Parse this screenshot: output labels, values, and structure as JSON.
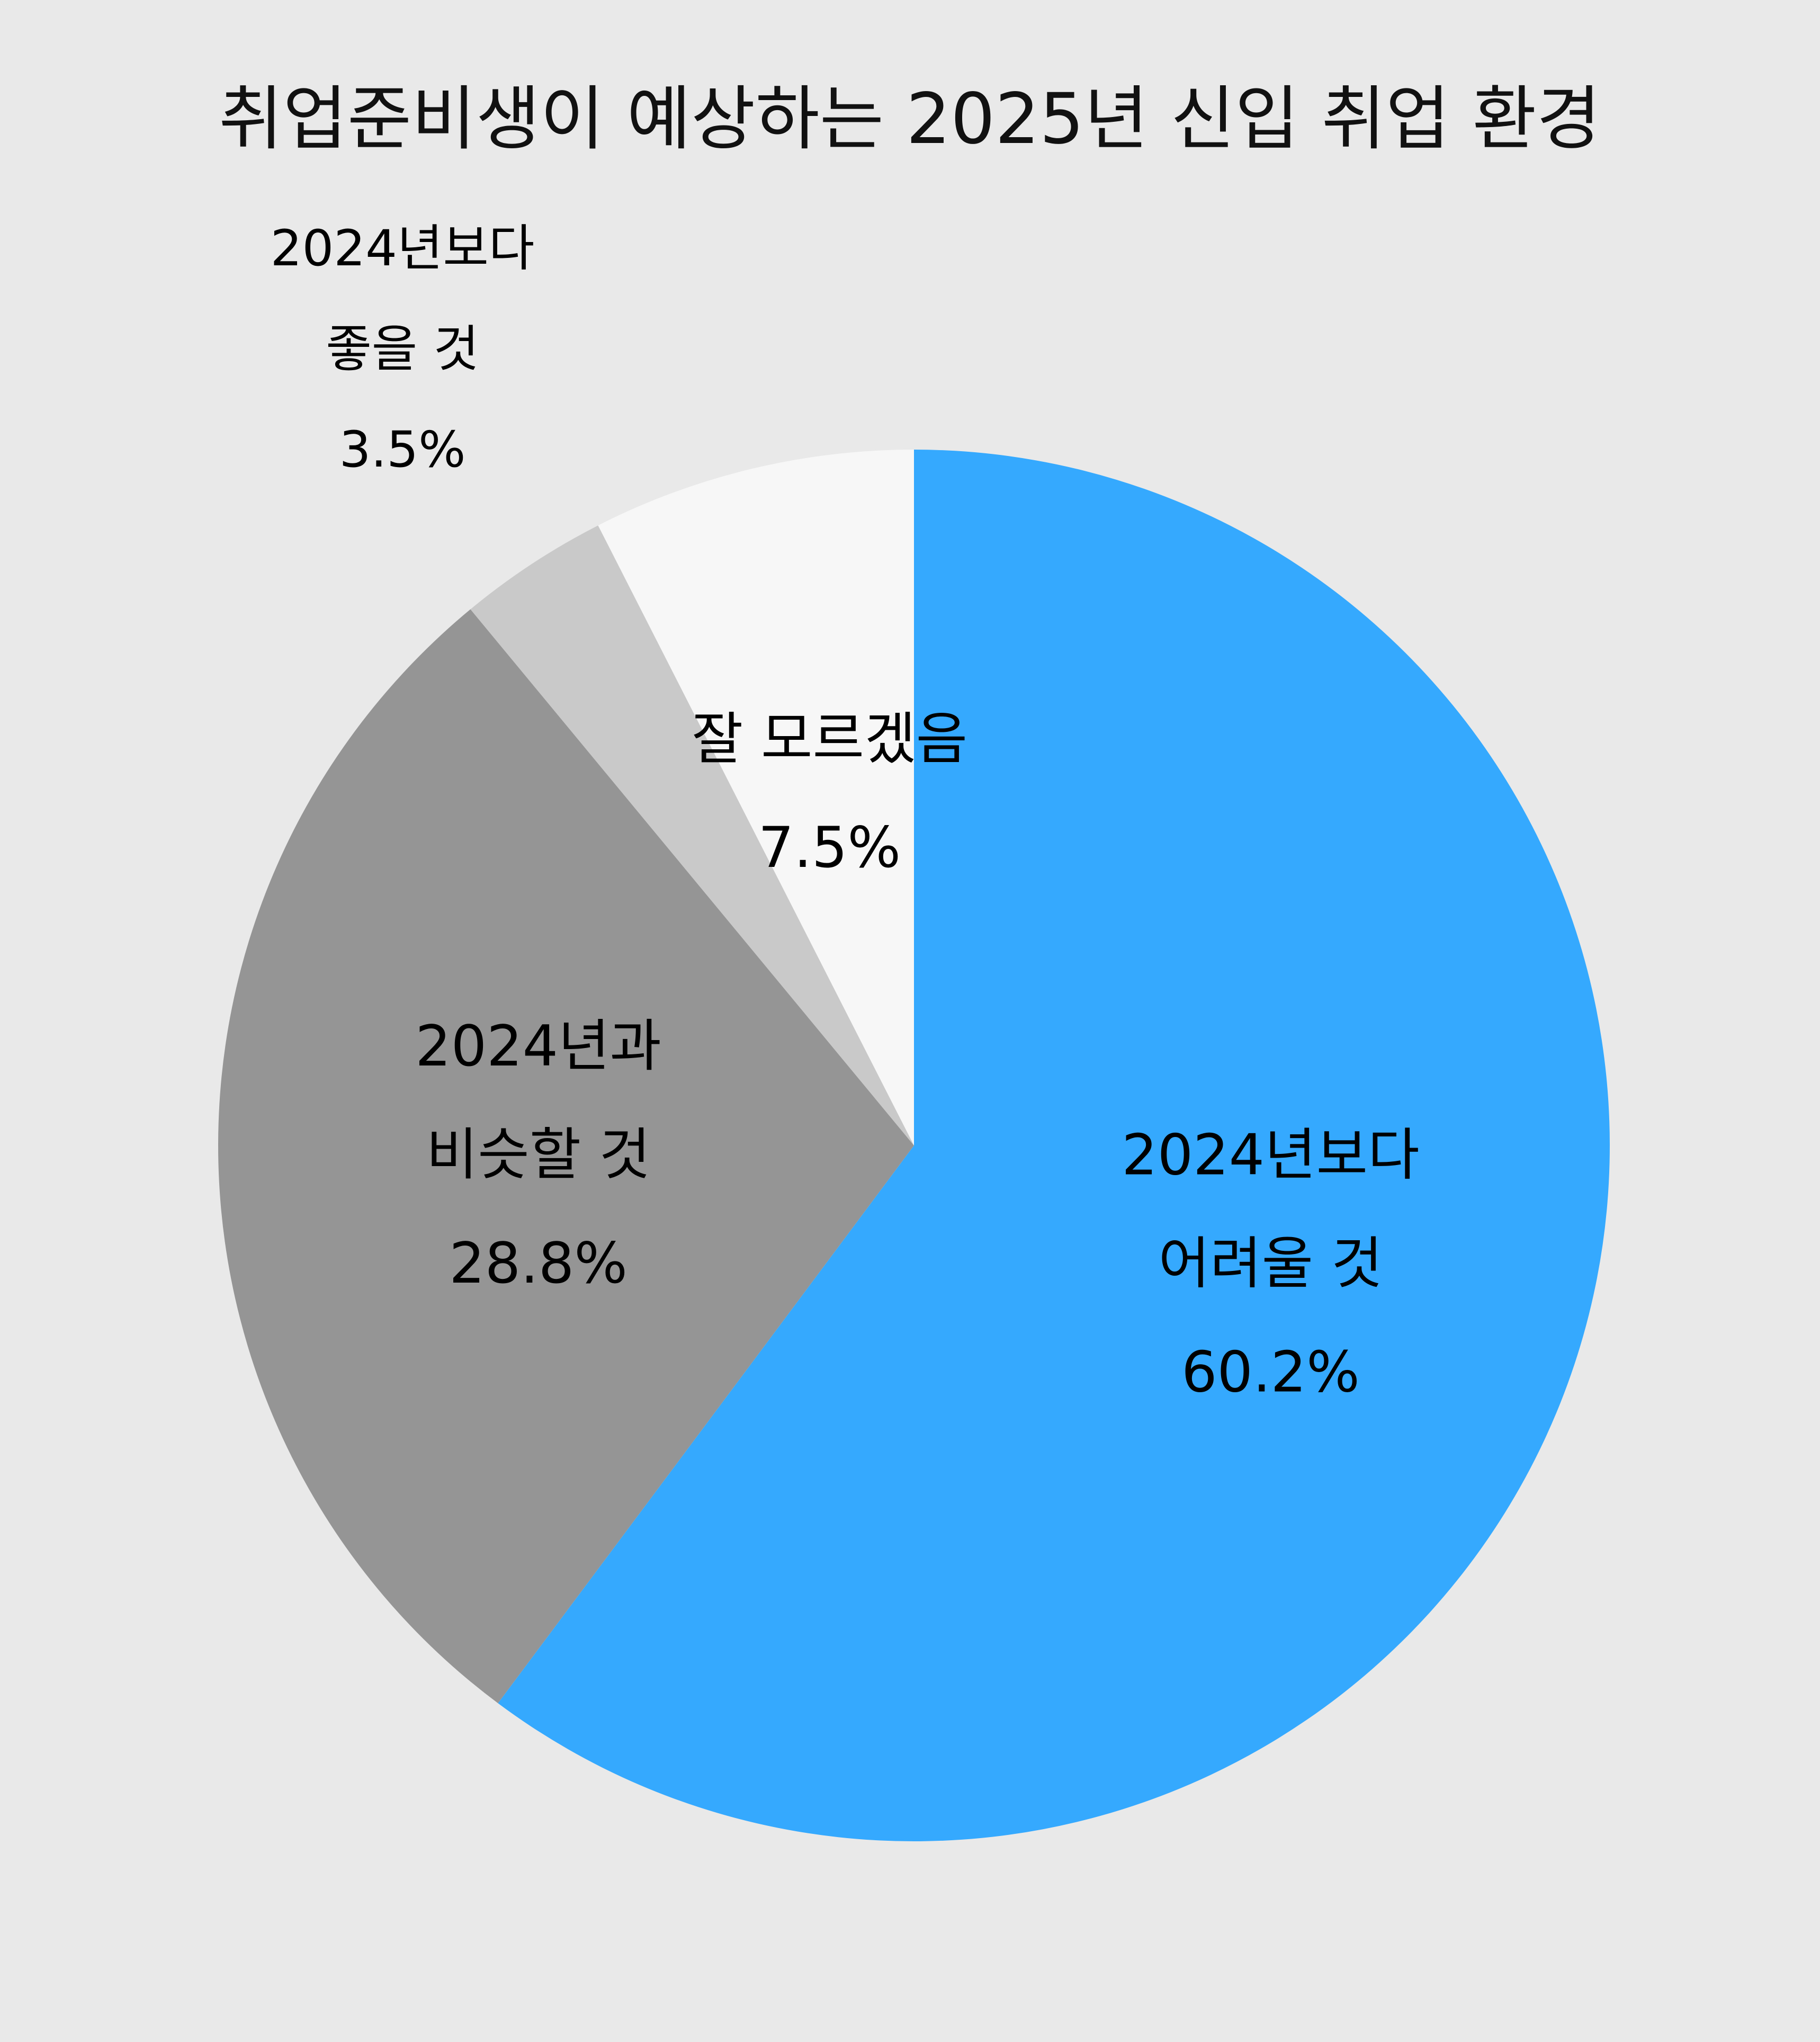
{
  "chart_data": {
    "type": "pie",
    "title": "취업준비생이 예상하는 2025년 신입 취업 환경",
    "start": "12 o'clock",
    "direction": "clockwise",
    "slices": [
      {
        "label_lines": [
          "2024년보다",
          "어려울 것"
        ],
        "value": 60.2,
        "value_label": "60.2%",
        "color": "#35a9fe",
        "label_position": "inside"
      },
      {
        "label_lines": [
          "2024년과",
          "비슷할 것"
        ],
        "value": 28.8,
        "value_label": "28.8%",
        "color": "#959595",
        "label_position": "inside"
      },
      {
        "label_lines": [
          "2024년보다",
          "좋을 것"
        ],
        "value": 3.5,
        "value_label": "3.5%",
        "color": "#c9c9c9",
        "label_position": "outside"
      },
      {
        "label_lines": [
          "잘 모르겠음"
        ],
        "value": 7.5,
        "value_label": "7.5%",
        "color": "#f7f7f7",
        "label_position": "inside"
      }
    ]
  }
}
